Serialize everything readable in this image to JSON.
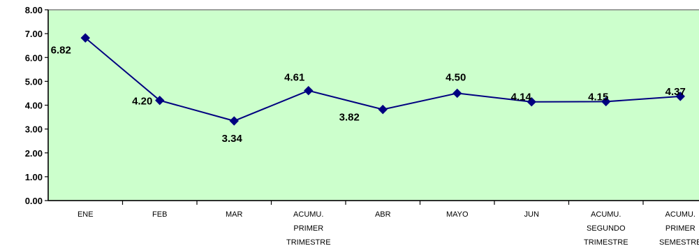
{
  "chart_data": {
    "type": "line",
    "categories": [
      [
        "ENE"
      ],
      [
        "FEB"
      ],
      [
        "MAR"
      ],
      [
        "ACUMU.",
        "PRIMER",
        "TRIMESTRE"
      ],
      [
        "ABR"
      ],
      [
        "MAYO"
      ],
      [
        "JUN"
      ],
      [
        "ACUMU.",
        "SEGUNDO",
        "TRIMESTRE"
      ],
      [
        "ACUMU.",
        "PRIMER",
        "SEMESTRE"
      ]
    ],
    "values": [
      6.82,
      4.2,
      3.34,
      4.61,
      3.82,
      4.5,
      4.14,
      4.15,
      4.37
    ],
    "data_labels": [
      "6.82",
      "4.20",
      "3.34",
      "4.61",
      "3.82",
      "4.50",
      "4.14",
      "4.15",
      "4.37"
    ],
    "y_ticks": [
      "0.00",
      "1.00",
      "2.00",
      "3.00",
      "4.00",
      "5.00",
      "6.00",
      "7.00",
      "8.00"
    ],
    "ylim": [
      0,
      8
    ],
    "title": "",
    "xlabel": "",
    "ylabel": "",
    "grid": false,
    "legend": "none",
    "colors": {
      "plot_background": "#ccffcc",
      "line": "#000080",
      "marker": "#000080",
      "axis": "#000000",
      "plot_border": "#808080"
    }
  }
}
